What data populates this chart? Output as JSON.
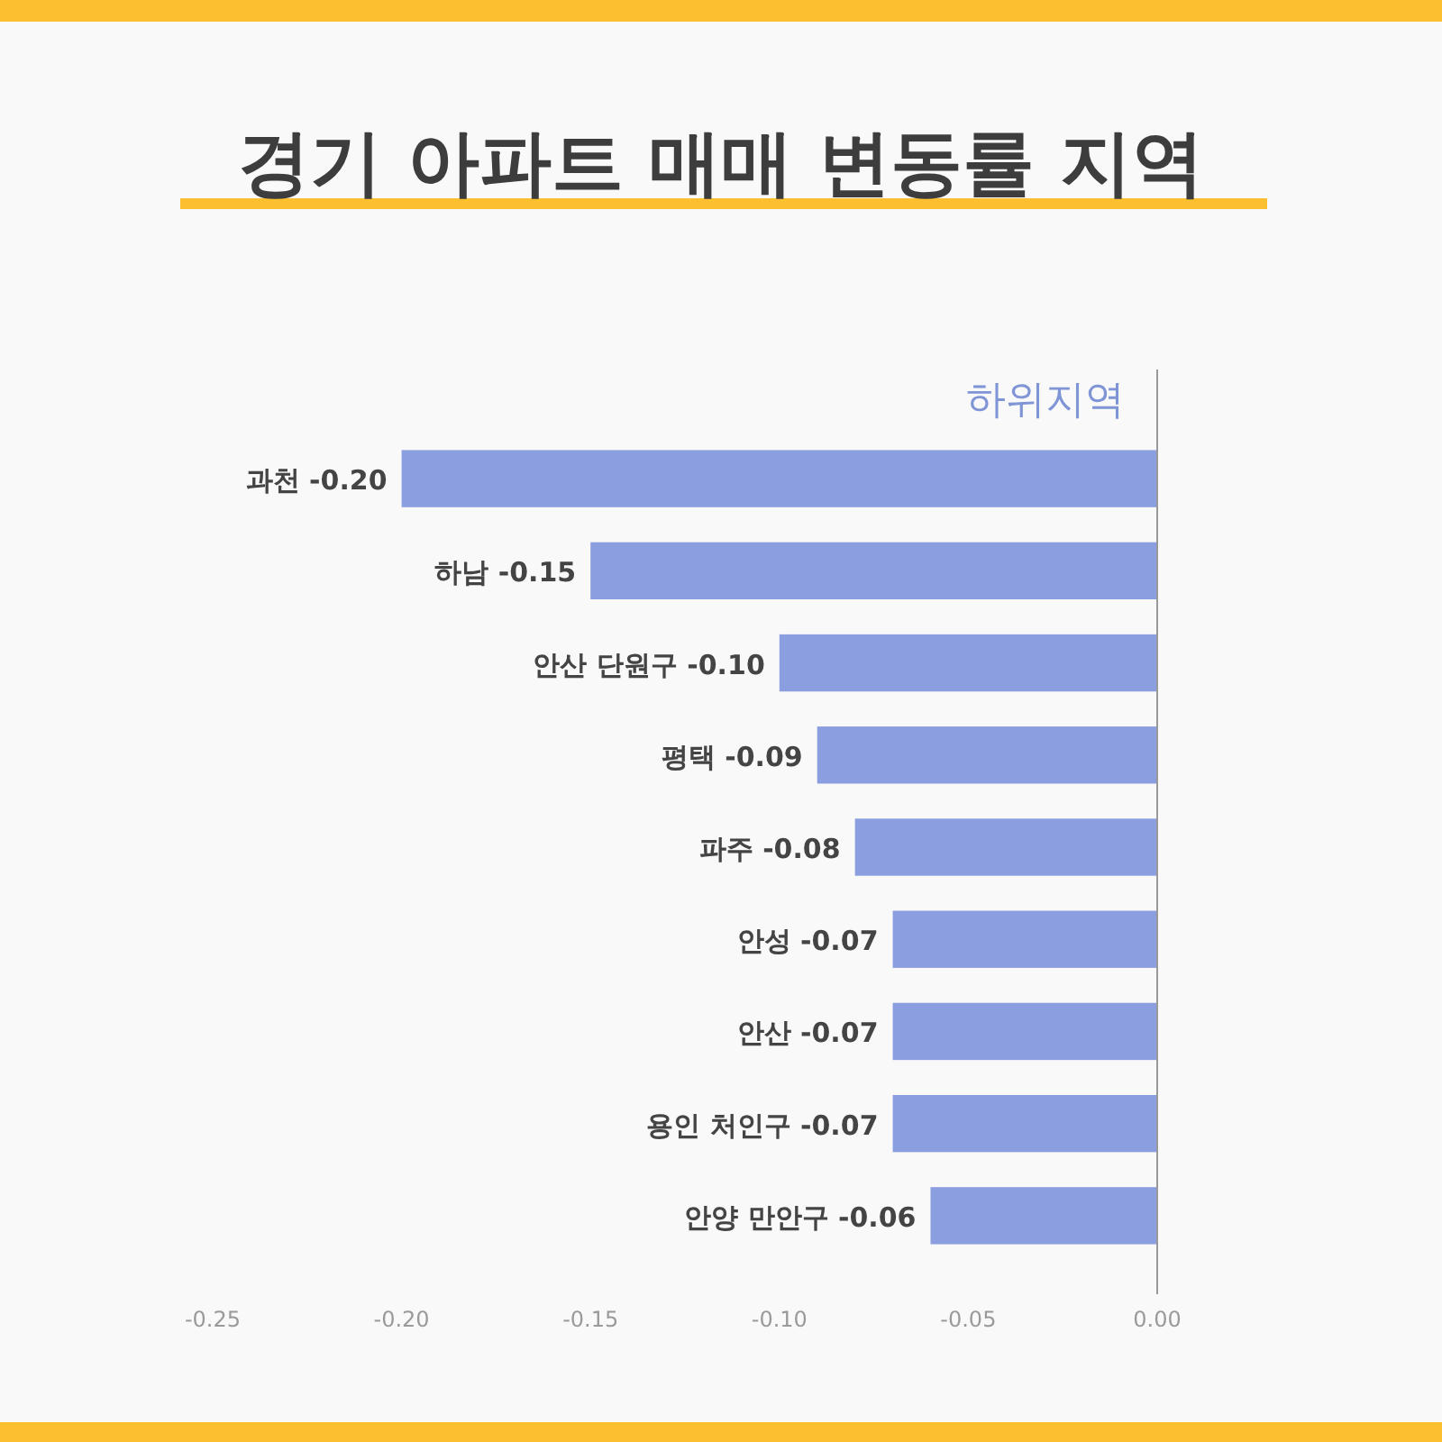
{
  "chart_data": {
    "type": "bar",
    "orientation": "horizontal",
    "title": "경기 아파트 매매 변동률 지역",
    "subtitle": "하위지역",
    "categories": [
      "과천",
      "하남",
      "안산 단원구",
      "평택",
      "파주",
      "안성",
      "안산",
      "용인 처인구",
      "안양 만안구"
    ],
    "values": [
      -0.2,
      -0.15,
      -0.1,
      -0.09,
      -0.08,
      -0.07,
      -0.07,
      -0.07,
      -0.06
    ],
    "value_labels": [
      "-0.20",
      "-0.15",
      "-0.10",
      "-0.09",
      "-0.08",
      "-0.07",
      "-0.07",
      "-0.07",
      "-0.06"
    ],
    "color": "#8a9ee0",
    "xlim": [
      -0.25,
      0
    ],
    "xticks": [
      {
        "value": -0.25,
        "label": "-0.25"
      },
      {
        "value": -0.2,
        "label": "-0.20"
      },
      {
        "value": -0.15,
        "label": "-0.15"
      },
      {
        "value": -0.1,
        "label": "-0.10"
      },
      {
        "value": -0.05,
        "label": "-0.05"
      },
      {
        "value": 0,
        "label": "0.00"
      }
    ],
    "grid": false
  }
}
